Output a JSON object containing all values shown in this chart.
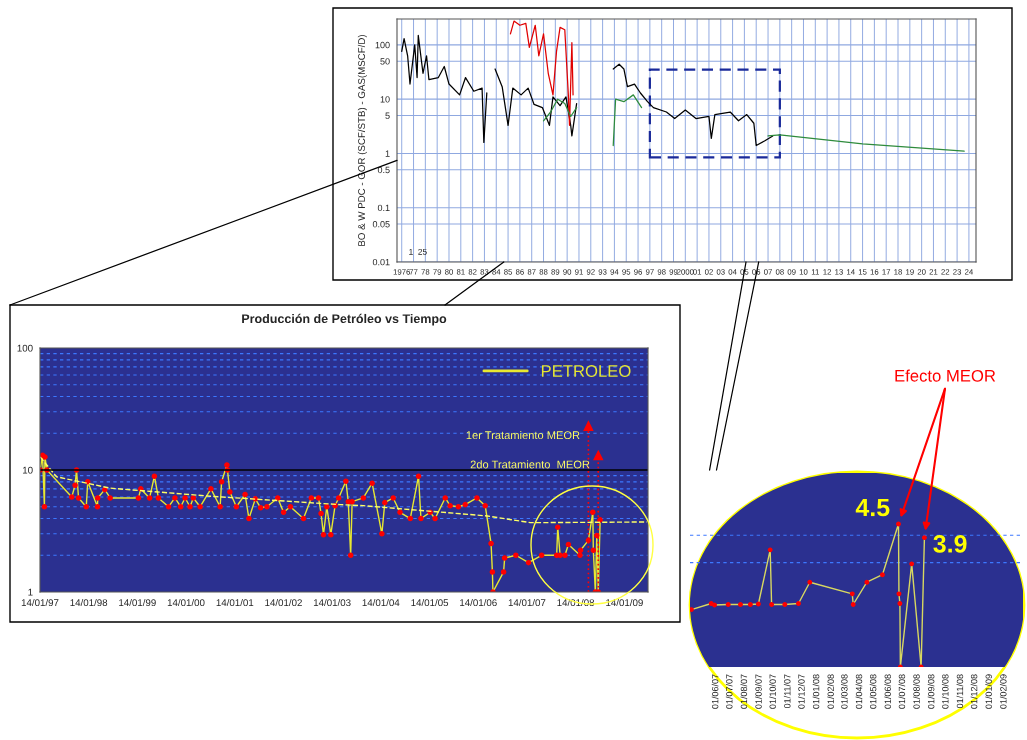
{
  "chart_data": [
    {
      "type": "line",
      "ylabel": "BO & W PDC - GOR (SCF/STB) - GAS(MSCF/D)",
      "log": "y",
      "grid": true,
      "legend": false,
      "xlim": [
        1975.6,
        2024.6
      ],
      "xticks": [
        {
          "value": 1976,
          "label": "1976"
        },
        {
          "value": 1977,
          "label": "77"
        },
        {
          "value": 1978,
          "label": "78"
        },
        {
          "value": 1979,
          "label": "79"
        },
        {
          "value": 1980,
          "label": "80"
        },
        {
          "value": 1981,
          "label": "81"
        },
        {
          "value": 1982,
          "label": "82"
        },
        {
          "value": 1983,
          "label": "83"
        },
        {
          "value": 1984,
          "label": "84"
        },
        {
          "value": 1985,
          "label": "85"
        },
        {
          "value": 1986,
          "label": "86"
        },
        {
          "value": 1987,
          "label": "87"
        },
        {
          "value": 1988,
          "label": "88"
        },
        {
          "value": 1989,
          "label": "89"
        },
        {
          "value": 1990,
          "label": "90"
        },
        {
          "value": 1991,
          "label": "91"
        },
        {
          "value": 1992,
          "label": "92"
        },
        {
          "value": 1993,
          "label": "93"
        },
        {
          "value": 1994,
          "label": "94"
        },
        {
          "value": 1995,
          "label": "95"
        },
        {
          "value": 1996,
          "label": "96"
        },
        {
          "value": 1997,
          "label": "97"
        },
        {
          "value": 1998,
          "label": "98"
        },
        {
          "value": 1999,
          "label": "99"
        },
        {
          "value": 2000,
          "label": "2000"
        },
        {
          "value": 2001,
          "label": "01"
        },
        {
          "value": 2002,
          "label": "02"
        },
        {
          "value": 2003,
          "label": "03"
        },
        {
          "value": 2004,
          "label": "04"
        },
        {
          "value": 2005,
          "label": "05"
        },
        {
          "value": 2006,
          "label": "06"
        },
        {
          "value": 2007,
          "label": "07"
        },
        {
          "value": 2008,
          "label": "08"
        },
        {
          "value": 2009,
          "label": "09"
        },
        {
          "value": 2010,
          "label": "10"
        },
        {
          "value": 2011,
          "label": "11"
        },
        {
          "value": 2012,
          "label": "12"
        },
        {
          "value": 2013,
          "label": "13"
        },
        {
          "value": 2014,
          "label": "14"
        },
        {
          "value": 2015,
          "label": "15"
        },
        {
          "value": 2016,
          "label": "16"
        },
        {
          "value": 2017,
          "label": "17"
        },
        {
          "value": 2018,
          "label": "18"
        },
        {
          "value": 2019,
          "label": "19"
        },
        {
          "value": 2020,
          "label": "20"
        },
        {
          "value": 2021,
          "label": "21"
        },
        {
          "value": 2022,
          "label": "22"
        },
        {
          "value": 2023,
          "label": "23"
        },
        {
          "value": 2024,
          "label": "24"
        }
      ],
      "ylim": [
        0.01,
        300
      ],
      "yticks": [
        0.01,
        0.05,
        0.1,
        0.5,
        1,
        5,
        10,
        50,
        100
      ],
      "annotations": [
        "1  25"
      ],
      "series": [
        {
          "color": "#000000",
          "x": [
            1976,
            1976.2,
            1976.5,
            1976.7,
            1977.1,
            1977.3,
            1977.4,
            1977.8,
            1978.1,
            1978.3,
            1979.1,
            1979.6,
            1980,
            1980.9,
            1981.4,
            1982.1,
            1982.8,
            1982.95,
            1983.2,
            null,
            1983.9,
            1984.5,
            1985.0,
            1985.4,
            1986.1,
            1986.7,
            1987.2,
            1987.9,
            1988.5,
            1988.8,
            1989.4,
            1989.9,
            1990.3,
            1990.4,
            1990.8,
            null,
            1993.9,
            1994.4,
            1994.8,
            1995.1,
            1995.7,
            1996.2,
            1996.8,
            1997.3,
            1998.4,
            1999.1,
            2000,
            2000.9,
            2002,
            2002.2,
            2002.5,
            2003.8,
            2004.5,
            2005.2,
            2005.8,
            2006,
            2006.7,
            2007.4
          ],
          "values": [
            76,
            130,
            63,
            19,
            100,
            25,
            150,
            30,
            63,
            23,
            25,
            40,
            19,
            12,
            25,
            14,
            16,
            1.6,
            13,
            null,
            36,
            17,
            3.3,
            16,
            12,
            16,
            8,
            7,
            3.3,
            11,
            7.6,
            11,
            3.3,
            2.1,
            8.3,
            null,
            36,
            44,
            36,
            17,
            19,
            13,
            9,
            7,
            5.8,
            4.4,
            6.3,
            4.4,
            4.8,
            1.9,
            5.2,
            5.8,
            4,
            5.2,
            3.6,
            1.4,
            1.7,
            2.1
          ]
        },
        {
          "color": "#e00000",
          "x": [
            1985.2,
            1985.5,
            1986.0,
            1986.5,
            1986.8,
            1987.3,
            1987.6,
            1988.0,
            1988.4,
            1988.8,
            1989.1,
            1989.4,
            1989.8,
            1990.1,
            1990.2,
            1990.4,
            1990.5
          ],
          "values": [
            160,
            275,
            230,
            250,
            90,
            230,
            63,
            160,
            30,
            12,
            76,
            210,
            190,
            12,
            3.3,
            110,
            12
          ]
        },
        {
          "color": "#2e8b3c",
          "x": [
            1988.0,
            1988.6,
            1989.2,
            1989.8,
            1990.3,
            1990.8,
            null,
            1993.9,
            1994.1,
            1994.8,
            1995.6,
            1996.3,
            null,
            2007.0,
            2008,
            2015,
            2023.6
          ],
          "values": [
            4,
            5.8,
            10,
            8.3,
            4.8,
            7,
            null,
            1.4,
            10,
            9,
            12,
            7,
            null,
            2.1,
            2.2,
            1.5,
            1.1
          ]
        }
      ]
    },
    {
      "type": "line",
      "title": "Producción de Petróleo vs Tiempo",
      "log": "y",
      "grid": "y",
      "legend": "top right",
      "marker": "circle",
      "xlim": [
        "1997-01-14",
        "2009-07-10"
      ],
      "xticks": [
        {
          "value": "1997-01-14",
          "label": "14/01/97"
        },
        {
          "value": "1998-01-14",
          "label": "14/01/98"
        },
        {
          "value": "1999-01-14",
          "label": "14/01/99"
        },
        {
          "value": "2000-01-14",
          "label": "14/01/00"
        },
        {
          "value": "2001-01-14",
          "label": "14/01/01"
        },
        {
          "value": "2002-01-14",
          "label": "14/01/02"
        },
        {
          "value": "2003-01-14",
          "label": "14/01/03"
        },
        {
          "value": "2004-01-14",
          "label": "14/01/04"
        },
        {
          "value": "2005-01-14",
          "label": "14/01/05"
        },
        {
          "value": "2006-01-14",
          "label": "14/01/06"
        },
        {
          "value": "2007-01-14",
          "label": "14/01/07"
        },
        {
          "value": "2008-01-14",
          "label": "14/01/08"
        },
        {
          "value": "2009-01-14",
          "label": "14/01/09"
        }
      ],
      "ylim": [
        1,
        100
      ],
      "yticks": [
        1,
        {
          "value": 2,
          "label": null
        },
        {
          "value": 3,
          "label": null
        },
        {
          "value": 4,
          "label": null
        },
        {
          "value": 5,
          "label": null
        },
        {
          "value": 6,
          "label": null
        },
        {
          "value": 7,
          "label": null
        },
        {
          "value": 8,
          "label": null
        },
        {
          "value": 9,
          "label": null
        },
        10,
        {
          "value": 20,
          "label": null
        },
        {
          "value": 30,
          "label": null
        },
        {
          "value": 40,
          "label": null
        },
        {
          "value": 50,
          "label": null
        },
        {
          "value": 60,
          "label": null
        },
        {
          "value": 70,
          "label": null
        },
        {
          "value": 80,
          "label": null
        },
        {
          "value": 90,
          "label": null
        },
        100
      ],
      "ref_lines": [
        {
          "axis": "y",
          "value": 10,
          "color": "#000000",
          "line_style": "solid"
        },
        {
          "axis": "x",
          "value": "2008-04-19",
          "label": "1er Tratamiento MEOR",
          "color": "#ff0000",
          "line_style": "dotted"
        },
        {
          "axis": "x",
          "value": "2008-07-02",
          "label": "2do Tratamiento  MEOR",
          "color": "#ff0000",
          "line_style": "dotted"
        }
      ],
      "series": [
        {
          "name": "PETROLEO",
          "color": "#e8e830",
          "x": [
            "1997-01-15",
            "1997-02-02",
            "1997-02-16",
            "1997-02-20",
            "1997-03-07",
            "1997-09-09",
            "1997-10-04",
            "1997-10-15",
            "1997-10-30",
            "1997-12-27",
            "1998-01-07",
            "1998-03-21",
            "1998-03-23",
            "1998-05-15",
            "1998-06-24",
            "1999-01-22",
            "1999-02-09",
            "1999-04-16",
            "1999-05-22",
            "1999-06-21",
            "1999-09-05",
            "1999-10-23",
            "1999-12-05",
            "2000-01-07",
            "2000-02-13",
            "2000-03-09",
            "2000-04-29",
            "2000-07-19",
            "2000-09-26",
            "2000-10-07",
            "2000-11-16",
            "2000-11-20",
            "2000-12-08",
            "2001-01-26",
            "2001-04-01",
            "2001-04-30",
            "2001-06-17",
            "2001-07-27",
            "2001-09-12",
            "2001-12-02",
            "2002-01-15",
            "2002-03-07",
            "2002-06-13",
            "2002-08-11",
            "2002-10-04",
            "2002-10-23",
            "2002-11-10",
            "2002-12-05",
            "2003-01-04",
            "2003-02-05",
            "2003-03-04",
            "2003-04-27",
            "2003-05-15",
            "2003-06-02",
            "2003-06-13",
            "2003-09-05",
            "2003-11-10",
            "2004-01-22",
            "2004-02-13",
            "2004-04-16",
            "2004-06-06",
            "2004-08-22",
            "2004-10-23",
            "2004-11-10",
            "2005-01-18",
            "2005-02-24",
            "2005-05-11",
            "2005-06-17",
            "2005-08-18",
            "2005-10-08",
            "2006-01-04",
            "2006-03-07",
            "2006-04-20",
            "2006-04-30",
            "2006-05-04",
            "2006-07-23",
            "2006-07-31",
            "2006-10-23",
            "2007-01-26",
            "2007-05-04",
            "2007-08-25",
            "2007-09-02",
            "2007-09-20",
            "2007-10-26",
            "2007-11-21",
            "2008-02-16",
            "2008-02-20",
            "2008-04-19",
            "2008-05-22",
            "2008-05-26",
            "2008-06-10",
            "2008-06-21",
            "2008-07-02",
            "2008-07-16"
          ],
          "values": [
            10,
            13.2,
            5,
            12.8,
            10,
            6,
            7.5,
            10,
            5.9,
            5,
            8,
            5,
            5.9,
            6.9,
            5.9,
            5.9,
            7,
            5.9,
            8.9,
            5.9,
            5,
            5.9,
            5,
            5.9,
            5,
            5.9,
            5,
            7,
            5,
            8,
            11,
            10,
            6.6,
            5,
            6.3,
            4,
            5.8,
            4.9,
            5,
            5.9,
            4.5,
            5,
            4,
            5.9,
            5.9,
            4.4,
            2.95,
            5,
            2.95,
            5.1,
            5.9,
            8.1,
            5.5,
            2.0,
            5.5,
            5.9,
            7.8,
            3.0,
            5.4,
            5.9,
            4.5,
            4.0,
            8.9,
            4.0,
            4.5,
            4.0,
            5.9,
            5.1,
            5.0,
            5.2,
            5.9,
            5.1,
            2.5,
            1.46,
            1.0,
            1.46,
            1.9,
            2.0,
            1.74,
            2.0,
            2.0,
            3.4,
            2.0,
            2.0,
            2.45,
            2.0,
            2.2,
            2.65,
            4.5,
            2.2,
            1.0,
            2.9,
            1.0,
            3.9
          ]
        },
        {
          "color": "#ffff66",
          "line_style": "dashed",
          "marker": "none",
          "x": [
            "1997-01-15",
            "1997-05-18",
            "1998-06-24",
            "2000-07-13",
            "2003-03-14",
            "2003-09-05",
            "2006-03-22",
            "2007-02-10",
            "2009-07-01"
          ],
          "values": [
            12.8,
            8.8,
            7.1,
            6.1,
            5.2,
            5.1,
            4.2,
            3.7,
            3.75
          ]
        }
      ]
    },
    {
      "type": "line",
      "log": "y",
      "grid": "y",
      "legend": false,
      "marker": "circle",
      "tick_labels": "x",
      "xlim": [
        "2007-04-07",
        "2009-03-13"
      ],
      "xticks": [
        {
          "value": "2007-06-01",
          "label": "01/06/07"
        },
        {
          "value": "2007-07-01",
          "label": "01/07/07"
        },
        {
          "value": "2007-08-01",
          "label": "01/08/07"
        },
        {
          "value": "2007-09-01",
          "label": "01/09/07"
        },
        {
          "value": "2007-10-01",
          "label": "01/10/07"
        },
        {
          "value": "2007-11-01",
          "label": "01/11/07"
        },
        {
          "value": "2007-12-01",
          "label": "01/12/07"
        },
        {
          "value": "2008-01-01",
          "label": "01/01/08"
        },
        {
          "value": "2008-02-01",
          "label": "01/02/08"
        },
        {
          "value": "2008-03-01",
          "label": "01/03/08"
        },
        {
          "value": "2008-04-01",
          "label": "01/04/08"
        },
        {
          "value": "2008-05-01",
          "label": "01/05/08"
        },
        {
          "value": "2008-06-01",
          "label": "01/06/08"
        },
        {
          "value": "2008-07-01",
          "label": "01/07/08"
        },
        {
          "value": "2008-08-01",
          "label": "01/08/08"
        },
        {
          "value": "2008-09-01",
          "label": "01/09/08"
        },
        {
          "value": "2008-10-01",
          "label": "01/10/08"
        },
        {
          "value": "2008-11-01",
          "label": "01/11/08"
        },
        {
          "value": "2008-12-01",
          "label": "01/12/08"
        },
        {
          "value": "2009-01-01",
          "label": "01/01/09"
        },
        {
          "value": "2009-02-01",
          "label": "01/02/09"
        }
      ],
      "ylim": [
        1,
        7.7
      ],
      "yticks": [
        {
          "value": 3,
          "label": null
        },
        {
          "value": 4,
          "label": null
        }
      ],
      "annotations": [
        "Efecto MEOR"
      ],
      "series": [
        {
          "color": "#d8d860",
          "x": [
            "2007-04-10",
            "2007-05-22",
            "2007-05-29",
            "2007-06-27",
            "2007-07-23",
            "2007-08-13",
            "2007-08-30",
            "2007-09-24",
            "2007-09-27",
            "2007-10-25",
            "2007-11-23",
            "2007-12-17",
            "2008-03-16",
            "2008-03-18",
            "2008-04-16",
            "2008-05-19",
            "2008-06-22",
            "2008-06-23",
            "2008-06-25",
            "2008-06-26",
            "2008-07-20",
            "2008-08-09",
            "2008-08-16"
          ],
          "values": [
            1.83,
            1.95,
            1.92,
            1.93,
            1.93,
            1.93,
            1.94,
            3.43,
            1.93,
            1.93,
            1.95,
            2.44,
            2.16,
            1.93,
            2.44,
            2.64,
            4.5,
            2.16,
            1.95,
            1.0,
            2.96,
            1.0,
            3.9
          ],
          "value_labels": [
            null,
            null,
            null,
            null,
            null,
            null,
            null,
            null,
            null,
            null,
            null,
            null,
            null,
            null,
            null,
            null,
            "4.5",
            null,
            null,
            null,
            null,
            null,
            "3.9"
          ]
        }
      ]
    }
  ]
}
